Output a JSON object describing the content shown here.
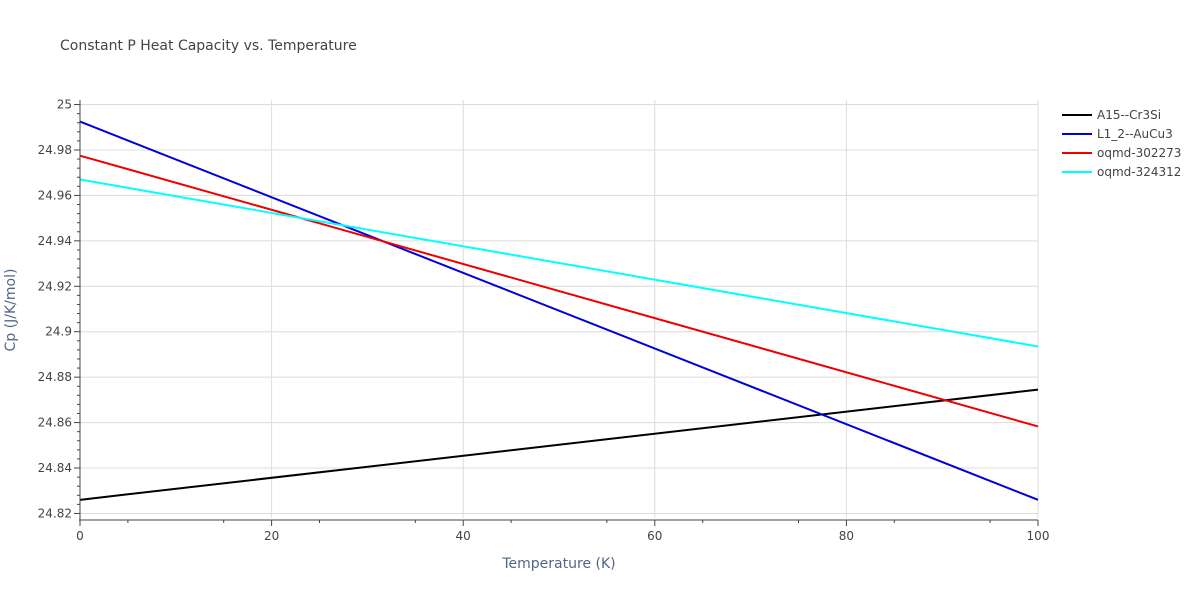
{
  "chart_data": {
    "type": "line",
    "title": "Constant P Heat Capacity vs. Temperature",
    "xlabel": "Temperature (K)",
    "ylabel": "Cp (J/K/mol)",
    "xlim": [
      0,
      100
    ],
    "ylim": [
      24.818,
      25.002
    ],
    "x_ticks": [
      0,
      20,
      40,
      60,
      80,
      100
    ],
    "x_tick_labels": [
      "0",
      "20",
      "40",
      "60",
      "80",
      "100"
    ],
    "y_ticks": [
      24.82,
      24.84,
      24.86,
      24.88,
      24.9,
      24.92,
      24.94,
      24.96,
      24.98,
      25
    ],
    "y_tick_labels": [
      "24.82",
      "24.84",
      "24.86",
      "24.88",
      "24.9",
      "24.92",
      "24.94",
      "24.96",
      "24.98",
      "25"
    ],
    "grid": true,
    "legend_position": "top-right",
    "series": [
      {
        "name": "A15--Cr3Si",
        "color": "#000000",
        "x": [
          0,
          100
        ],
        "y": [
          24.826,
          24.8745
        ]
      },
      {
        "name": "L1_2--AuCu3",
        "color": "#0000dd",
        "x": [
          0,
          100
        ],
        "y": [
          24.9925,
          24.826
        ]
      },
      {
        "name": "oqmd-302273",
        "color": "#ee0000",
        "x": [
          0,
          100
        ],
        "y": [
          24.9775,
          24.8583
        ]
      },
      {
        "name": "oqmd-324312",
        "color": "#00ffff",
        "x": [
          0,
          100
        ],
        "y": [
          24.967,
          24.8935
        ]
      }
    ]
  }
}
